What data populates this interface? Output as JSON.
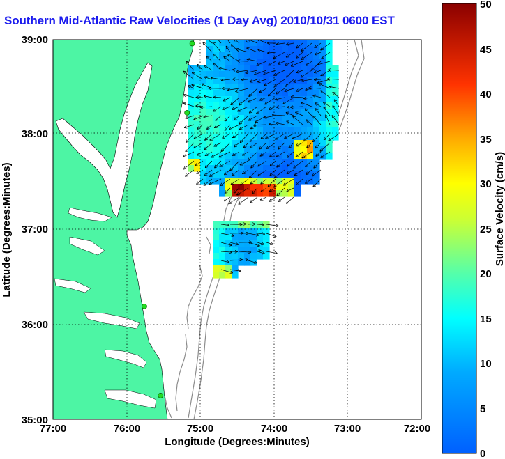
{
  "title": "Southern Mid-Atlantic Raw Velocities (1 Day Avg) 2010/10/31 0600 EST",
  "axes": {
    "xlabel": "Longitude (Degrees:Minutes)",
    "ylabel": "Latitude (Degrees:Minutes)",
    "x_ticks": [
      "77:00",
      "76:00",
      "75:00",
      "74:00",
      "73:00",
      "72:00"
    ],
    "y_ticks": [
      "39:00",
      "38:00",
      "37:00",
      "36:00",
      "35:00"
    ],
    "xlim": [
      -77,
      -72
    ],
    "ylim": [
      35,
      39
    ]
  },
  "colorbar": {
    "label": "Surface Velocity (cm/s)",
    "ticks": [
      "50",
      "45",
      "40",
      "35",
      "30",
      "25",
      "20",
      "15",
      "10",
      "5",
      "0"
    ],
    "range": [
      0,
      50
    ],
    "colormap": "jet"
  },
  "colors": {
    "land": "#4df5a4",
    "water": "#ffffff",
    "title": "#1a1aee",
    "bathymetry": "#8c8c8c",
    "station": "#22dd22"
  },
  "stations": [
    {
      "lon": -75.11,
      "lat": 38.96
    },
    {
      "lon": -75.18,
      "lat": 38.23
    },
    {
      "lon": -75.76,
      "lat": 36.19
    },
    {
      "lon": -75.54,
      "lat": 35.25
    }
  ],
  "velocity_regions": [
    {
      "name": "north",
      "lon": [
        -74.95,
        -73.1
      ],
      "lat": [
        37.55,
        38.95
      ],
      "speed_range": [
        5,
        20
      ]
    },
    {
      "name": "south",
      "lon": [
        -74.78,
        -74.1
      ],
      "lat": [
        36.6,
        37.05
      ],
      "speed_range": [
        10,
        22
      ]
    }
  ]
}
